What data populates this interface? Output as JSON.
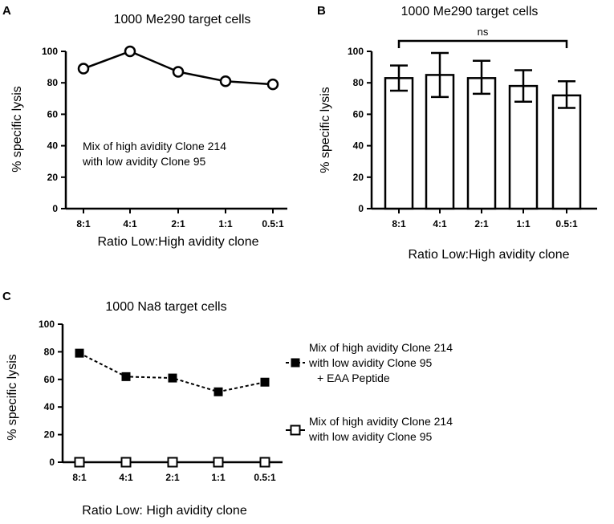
{
  "chart_data": [
    {
      "panel": "A",
      "type": "line",
      "title": "1000 Me290 target cells",
      "xlabel": "Ratio Low:High avidity clone",
      "ylabel": "% specific lysis",
      "categories": [
        "8:1",
        "4:1",
        "2:1",
        "1:1",
        "0.5:1"
      ],
      "ylim": [
        0,
        100
      ],
      "yticks": [
        0,
        20,
        40,
        60,
        80,
        100
      ],
      "annotation": [
        "Mix of high avidity Clone 214",
        "with low avidity Clone 95"
      ],
      "series": [
        {
          "name": "Mix of high avidity Clone 214 with low avidity Clone 95",
          "marker": "open-circle",
          "line": "solid",
          "values": [
            89,
            100,
            87,
            81,
            79
          ]
        }
      ]
    },
    {
      "panel": "B",
      "type": "bar",
      "title": "1000 Me290 target cells",
      "xlabel": "Ratio Low:High avidity clone",
      "ylabel": "% specific lysis",
      "categories": [
        "8:1",
        "4:1",
        "2:1",
        "1:1",
        "0.5:1"
      ],
      "ylim": [
        0,
        100
      ],
      "yticks": [
        0,
        20,
        40,
        60,
        80,
        100
      ],
      "significance": {
        "label": "ns",
        "from": "8:1",
        "to": "0.5:1"
      },
      "series": [
        {
          "name": "% specific lysis",
          "values": [
            83,
            85,
            83,
            78,
            72
          ],
          "error_low": [
            75,
            71,
            73,
            68,
            64
          ],
          "error_high": [
            91,
            99,
            94,
            88,
            81
          ]
        }
      ]
    },
    {
      "panel": "C",
      "type": "line",
      "title": "1000 Na8 target cells",
      "xlabel": "Ratio Low: High avidity clone",
      "ylabel": "% specific lysis",
      "categories": [
        "8:1",
        "4:1",
        "2:1",
        "1:1",
        "0.5:1"
      ],
      "ylim": [
        0,
        100
      ],
      "yticks": [
        0,
        20,
        40,
        60,
        80,
        100
      ],
      "series": [
        {
          "name": "Mix of high avidity Clone 214 with low avidity Clone 95 + EAA Peptide",
          "legend_lines": [
            "Mix of high avidity Clone 214",
            "with low avidity Clone 95",
            "+ EAA Peptide"
          ],
          "marker": "filled-square",
          "line": "dashed",
          "values": [
            79,
            62,
            61,
            51,
            58
          ]
        },
        {
          "name": "Mix of high avidity Clone 214 with low avidity Clone 95",
          "legend_lines": [
            "Mix of high avidity Clone 214",
            "with low avidity Clone 95"
          ],
          "marker": "open-square",
          "line": "solid",
          "values": [
            0,
            0,
            0,
            0,
            0
          ]
        }
      ]
    }
  ],
  "panels": {
    "a": "A",
    "b": "B",
    "c": "C"
  }
}
